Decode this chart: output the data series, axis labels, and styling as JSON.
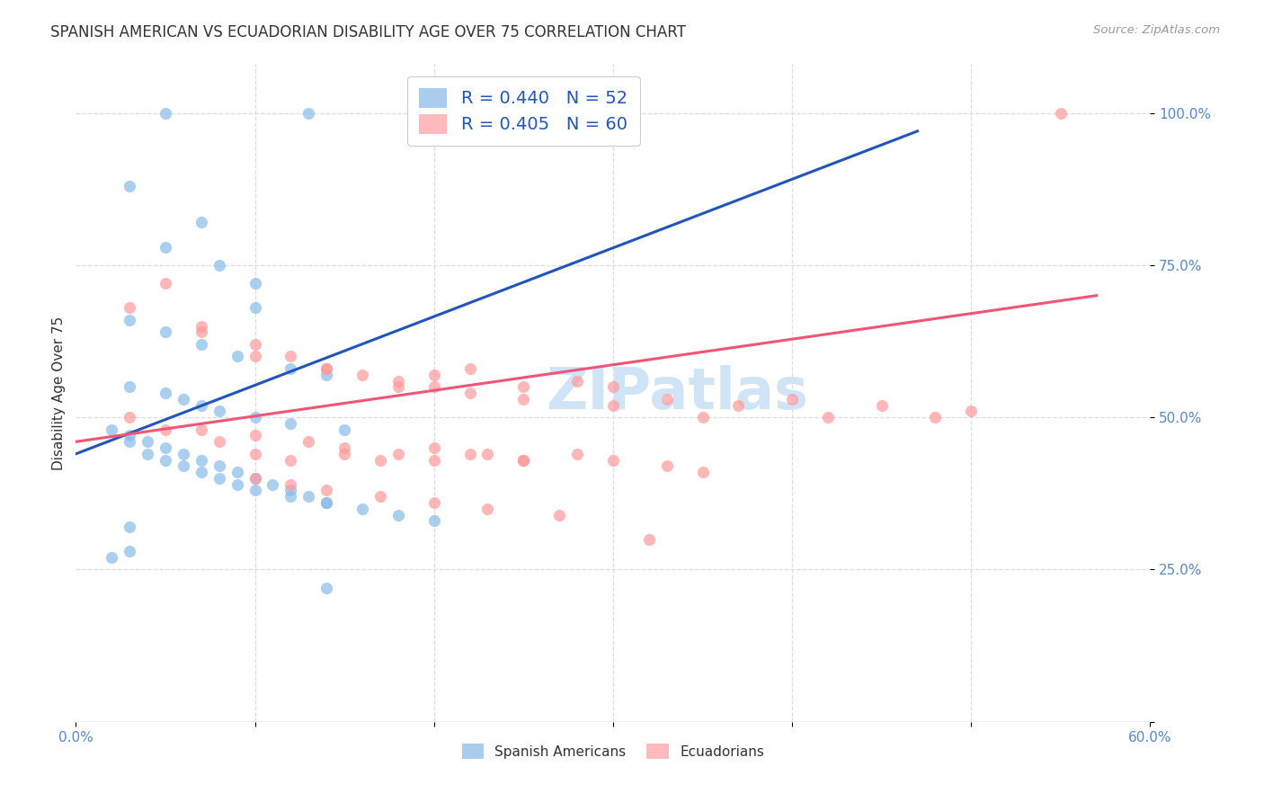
{
  "title": "SPANISH AMERICAN VS ECUADORIAN DISABILITY AGE OVER 75 CORRELATION CHART",
  "source": "Source: ZipAtlas.com",
  "ylabel": "Disability Age Over 75",
  "xmin": 0,
  "xmax": 60,
  "ymin": 0,
  "ymax": 108,
  "blue_color": "#88BBE8",
  "pink_color": "#FF9999",
  "blue_line_color": "#2255BB",
  "pink_line_color": "#EE5577",
  "watermark_text": "ZIPatlas",
  "watermark_color": "#D0E4F7",
  "title_color": "#333333",
  "source_color": "#999999",
  "axis_tick_color": "#5588CC",
  "grid_color": "#DDDDDD",
  "blue_scatter_x": [
    5,
    13,
    3,
    7,
    5,
    8,
    10,
    10,
    3,
    5,
    7,
    9,
    12,
    14,
    3,
    5,
    6,
    7,
    8,
    10,
    12,
    15,
    3,
    4,
    5,
    6,
    7,
    8,
    9,
    10,
    11,
    12,
    13,
    14,
    2,
    3,
    4,
    5,
    6,
    7,
    8,
    9,
    10,
    12,
    14,
    16,
    18,
    20,
    3,
    3,
    2,
    14
  ],
  "blue_scatter_y": [
    100,
    100,
    88,
    82,
    78,
    75,
    72,
    68,
    66,
    64,
    62,
    60,
    58,
    57,
    55,
    54,
    53,
    52,
    51,
    50,
    49,
    48,
    47,
    46,
    45,
    44,
    43,
    42,
    41,
    40,
    39,
    38,
    37,
    36,
    48,
    46,
    44,
    43,
    42,
    41,
    40,
    39,
    38,
    37,
    36,
    35,
    34,
    33,
    32,
    28,
    27,
    22
  ],
  "pink_scatter_x": [
    55,
    3,
    7,
    10,
    14,
    18,
    20,
    22,
    25,
    28,
    30,
    30,
    33,
    35,
    37,
    40,
    42,
    45,
    48,
    50,
    5,
    7,
    10,
    12,
    14,
    16,
    18,
    20,
    22,
    25,
    3,
    5,
    8,
    10,
    12,
    15,
    17,
    20,
    22,
    25,
    28,
    30,
    33,
    35,
    7,
    10,
    13,
    15,
    18,
    20,
    23,
    25,
    10,
    12,
    14,
    17,
    20,
    23,
    27,
    32
  ],
  "pink_scatter_y": [
    100,
    68,
    64,
    60,
    58,
    56,
    57,
    58,
    55,
    56,
    55,
    52,
    53,
    50,
    52,
    53,
    50,
    52,
    50,
    51,
    72,
    65,
    62,
    60,
    58,
    57,
    55,
    55,
    54,
    53,
    50,
    48,
    46,
    44,
    43,
    44,
    43,
    45,
    44,
    43,
    44,
    43,
    42,
    41,
    48,
    47,
    46,
    45,
    44,
    43,
    44,
    43,
    40,
    39,
    38,
    37,
    36,
    35,
    34,
    30
  ],
  "blue_line_x": [
    0,
    47
  ],
  "blue_line_y": [
    44,
    97
  ],
  "pink_line_x": [
    0,
    57
  ],
  "pink_line_y": [
    46,
    70
  ],
  "legend_labels": [
    "R = 0.440   N = 52",
    "R = 0.405   N = 60"
  ],
  "bottom_legend_labels": [
    "Spanish Americans",
    "Ecuadorians"
  ],
  "ytick_vals": [
    0,
    25,
    50,
    75,
    100
  ],
  "ytick_labels": [
    "",
    "25.0%",
    "50.0%",
    "75.0%",
    "100.0%"
  ],
  "xtick_vals": [
    0,
    10,
    20,
    30,
    40,
    50,
    60
  ],
  "xtick_labels": [
    "0.0%",
    "",
    "",
    "",
    "",
    "",
    "60.0%"
  ]
}
